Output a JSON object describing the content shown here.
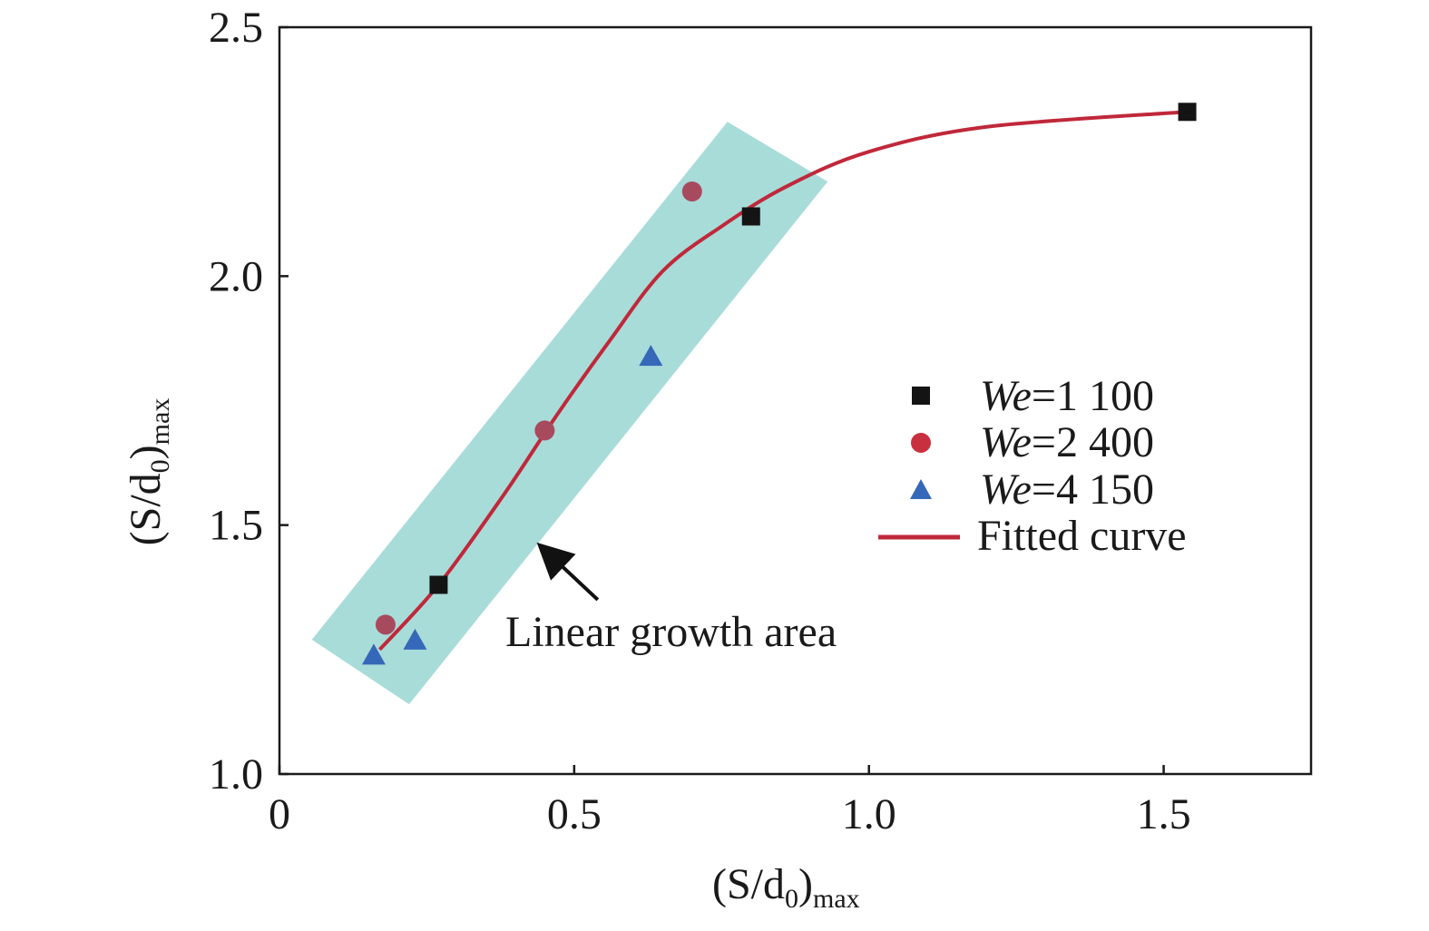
{
  "chart_data": {
    "type": "scatter",
    "title": "",
    "xlabel": {
      "main": "(S/d",
      "sub0": "0",
      "close": ")",
      "submax": "max"
    },
    "ylabel": {
      "main": "(S/d",
      "sub0": "0",
      "close": ")",
      "submax": "max"
    },
    "xlim": [
      0,
      1.75
    ],
    "ylim": [
      1.0,
      2.5
    ],
    "x_ticks": [
      {
        "value": 0,
        "label": "0"
      },
      {
        "value": 0.5,
        "label": "0.5"
      },
      {
        "value": 1.0,
        "label": "1.0"
      },
      {
        "value": 1.5,
        "label": "1.5"
      }
    ],
    "y_ticks": [
      {
        "value": 1.0,
        "label": "1.0"
      },
      {
        "value": 1.5,
        "label": "1.5"
      },
      {
        "value": 2.0,
        "label": "2.0"
      },
      {
        "value": 2.5,
        "label": "2.5"
      }
    ],
    "grid": false,
    "legend_position": "right",
    "series": [
      {
        "name": "We=1 100",
        "name_prefix": "We",
        "name_suffix": "=1 100",
        "marker": "square",
        "color": "#141414",
        "points": [
          {
            "x": 0.27,
            "y": 1.38
          },
          {
            "x": 0.8,
            "y": 2.12
          },
          {
            "x": 1.54,
            "y": 2.33
          }
        ]
      },
      {
        "name": "We=2 400",
        "name_prefix": "We",
        "name_suffix": "=2 400",
        "marker": "circle",
        "color": "#a84a5e",
        "points": [
          {
            "x": 0.18,
            "y": 1.3
          },
          {
            "x": 0.45,
            "y": 1.69
          },
          {
            "x": 0.7,
            "y": 2.17
          }
        ]
      },
      {
        "name": "We=4 150",
        "name_prefix": "We",
        "name_suffix": "=4 150",
        "marker": "triangle",
        "color": "#3568b8",
        "points": [
          {
            "x": 0.16,
            "y": 1.24
          },
          {
            "x": 0.23,
            "y": 1.27
          },
          {
            "x": 0.63,
            "y": 1.84
          }
        ]
      }
    ],
    "fitted_curve": {
      "name": "Fitted curve",
      "color": "#c0283a",
      "points": [
        {
          "x": 0.17,
          "y": 1.25
        },
        {
          "x": 0.27,
          "y": 1.38
        },
        {
          "x": 0.38,
          "y": 1.56
        },
        {
          "x": 0.47,
          "y": 1.72
        },
        {
          "x": 0.56,
          "y": 1.87
        },
        {
          "x": 0.65,
          "y": 2.01
        },
        {
          "x": 0.75,
          "y": 2.1
        },
        {
          "x": 0.86,
          "y": 2.18
        },
        {
          "x": 1.0,
          "y": 2.25
        },
        {
          "x": 1.2,
          "y": 2.3
        },
        {
          "x": 1.54,
          "y": 2.33
        }
      ]
    },
    "highlight_region": {
      "color": "#a8dcd9",
      "corners": [
        {
          "x": 0.055,
          "y": 1.27
        },
        {
          "x": 0.76,
          "y": 2.31
        },
        {
          "x": 0.93,
          "y": 2.19
        },
        {
          "x": 0.22,
          "y": 1.14
        }
      ]
    },
    "annotation": {
      "text": "Linear growth area",
      "arrow_from": {
        "x": 0.54,
        "y": 1.35
      },
      "arrow_to": {
        "x": 0.45,
        "y": 1.45
      }
    },
    "axis_color": "#1a1a1a"
  }
}
